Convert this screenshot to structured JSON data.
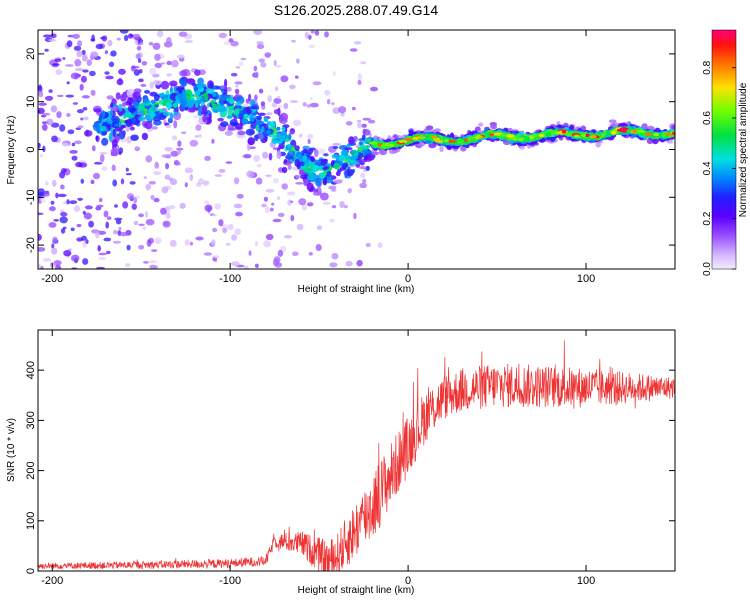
{
  "title": "S126.2025.288.07.49.G14",
  "chart_data": [
    {
      "type": "heatmap",
      "name": "spectrogram",
      "xlabel": "Height of straight line (km)",
      "ylabel": "Frequency (Hz)",
      "xlim": [
        -208,
        150
      ],
      "ylim": [
        -25,
        25
      ],
      "xticks": [
        -200,
        -100,
        0,
        100
      ],
      "yticks": [
        -20,
        -10,
        0,
        10,
        20
      ],
      "colorbar": {
        "label": "Normalized spectral amplitude",
        "range": [
          0,
          0.95
        ],
        "ticks": [
          0.0,
          0.2,
          0.4,
          0.6,
          0.8
        ]
      },
      "ridge": {
        "x": [
          -170,
          -150,
          -135,
          -120,
          -100,
          -85,
          -70,
          -55,
          -45,
          -35,
          -25,
          -20,
          0,
          20,
          40,
          60,
          80,
          100,
          120,
          150
        ],
        "y": [
          5,
          8,
          10,
          11,
          9,
          6,
          2,
          -4,
          -5,
          -2,
          0,
          1,
          2,
          2,
          2.5,
          2.8,
          3,
          3.2,
          3.5,
          3.5
        ]
      },
      "noisy_below_km": -20
    },
    {
      "type": "line",
      "name": "snr",
      "xlabel": "Height of straight line (km)",
      "ylabel": "SNR (10 * v/v)",
      "xlim": [
        -208,
        150
      ],
      "ylim": [
        0,
        480
      ],
      "xticks": [
        -200,
        -100,
        0,
        100
      ],
      "yticks": [
        0,
        100,
        200,
        300,
        400
      ],
      "color": "#ee3333",
      "trend": {
        "x": [
          -208,
          -150,
          -100,
          -80,
          -75,
          -60,
          -45,
          -40,
          -30,
          -20,
          -10,
          0,
          10,
          20,
          30,
          50,
          100,
          150
        ],
        "y": [
          10,
          12,
          15,
          20,
          60,
          55,
          20,
          30,
          80,
          130,
          190,
          250,
          310,
          345,
          360,
          370,
          365,
          365
        ]
      },
      "noise_amplitude": {
        "x": [
          -208,
          -80,
          -60,
          -40,
          -20,
          0,
          20,
          60,
          100,
          150
        ],
        "y": [
          6,
          10,
          25,
          45,
          70,
          60,
          45,
          45,
          40,
          22
        ]
      }
    }
  ]
}
